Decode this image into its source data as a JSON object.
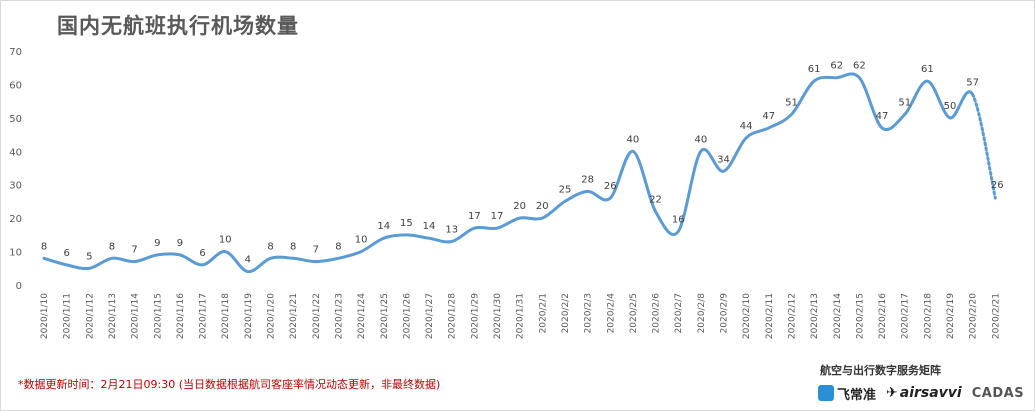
{
  "title": "国内无航班执行机场数量",
  "footnote": "*数据更新时间：2月21日09:30 (当日数据根据航司客座率情况动态更新，非最终数据)",
  "brand": {
    "title": "航空与出行数字服务矩阵",
    "logos": [
      {
        "name": "飞常准",
        "icon": "variflight-icon"
      },
      {
        "name": "airsavvi",
        "icon": "airsavvi-icon"
      },
      {
        "name": "CADAS",
        "icon": "cadas-icon"
      }
    ]
  },
  "chart_data": {
    "type": "line",
    "title": "国内无航班执行机场数量",
    "xlabel": "",
    "ylabel": "",
    "ylim": [
      0,
      70
    ],
    "yticks": [
      0,
      10,
      20,
      30,
      40,
      50,
      60,
      70
    ],
    "grid": false,
    "line_color": "#5b9bd5",
    "dotted_last_segment": true,
    "categories": [
      "2020/1/10",
      "2020/1/11",
      "2020/1/12",
      "2020/1/13",
      "2020/1/14",
      "2020/1/15",
      "2020/1/16",
      "2020/1/17",
      "2020/1/18",
      "2020/1/19",
      "2020/1/20",
      "2020/1/21",
      "2020/1/22",
      "2020/1/23",
      "2020/1/24",
      "2020/1/25",
      "2020/1/26",
      "2020/1/27",
      "2020/1/28",
      "2020/1/29",
      "2020/1/30",
      "2020/1/31",
      "2020/2/1",
      "2020/2/2",
      "2020/2/3",
      "2020/2/4",
      "2020/2/5",
      "2020/2/6",
      "2020/2/7",
      "2020/2/8",
      "2020/2/9",
      "2020/2/10",
      "2020/2/11",
      "2020/2/12",
      "2020/2/13",
      "2020/2/14",
      "2020/2/15",
      "2020/2/16",
      "2020/2/17",
      "2020/2/18",
      "2020/2/19",
      "2020/2/20",
      "2020/2/21"
    ],
    "values": [
      8,
      6,
      5,
      8,
      7,
      9,
      9,
      6,
      10,
      4,
      8,
      8,
      7,
      8,
      10,
      14,
      15,
      14,
      13,
      17,
      17,
      20,
      20,
      25,
      28,
      26,
      40,
      22,
      16,
      40,
      34,
      44,
      47,
      51,
      61,
      62,
      62,
      47,
      51,
      61,
      50,
      57,
      26
    ]
  }
}
